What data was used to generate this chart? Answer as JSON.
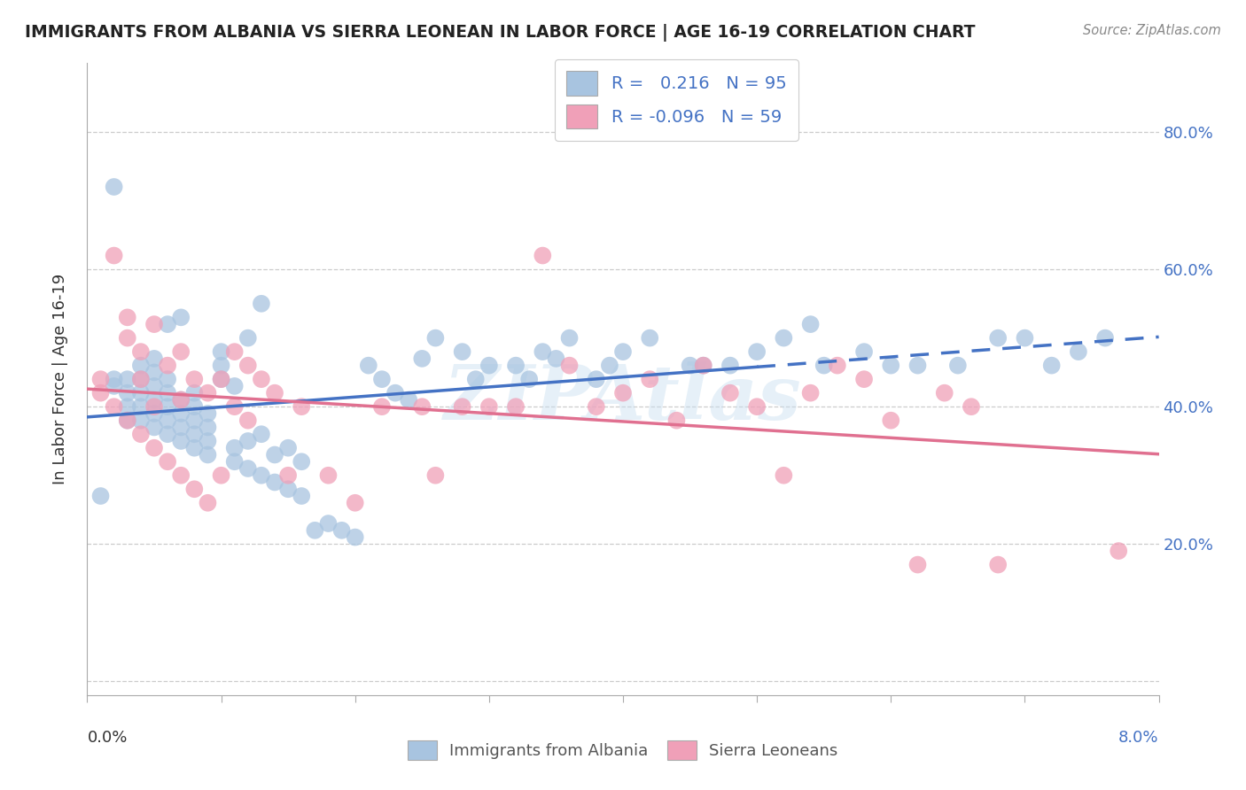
{
  "title": "IMMIGRANTS FROM ALBANIA VS SIERRA LEONEAN IN LABOR FORCE | AGE 16-19 CORRELATION CHART",
  "source": "Source: ZipAtlas.com",
  "ylabel_label": "In Labor Force | Age 16-19",
  "xlim": [
    0.0,
    8.0
  ],
  "ylim": [
    -2.0,
    90.0
  ],
  "yticks": [
    0.0,
    20.0,
    40.0,
    60.0,
    80.0
  ],
  "ytick_labels_right": [
    "",
    "20.0%",
    "40.0%",
    "60.0%",
    "80.0%"
  ],
  "legend_r_albania": "0.216",
  "legend_n_albania": "95",
  "legend_r_sierra": "-0.096",
  "legend_n_sierra": "59",
  "albania_color": "#a8c4e0",
  "sierra_color": "#f0a0b8",
  "albania_line_color": "#4472c4",
  "sierra_line_color": "#e07090",
  "albania_x": [
    0.1,
    0.2,
    0.2,
    0.3,
    0.3,
    0.3,
    0.3,
    0.4,
    0.4,
    0.4,
    0.4,
    0.4,
    0.5,
    0.5,
    0.5,
    0.5,
    0.5,
    0.5,
    0.6,
    0.6,
    0.6,
    0.6,
    0.6,
    0.6,
    0.7,
    0.7,
    0.7,
    0.7,
    0.7,
    0.8,
    0.8,
    0.8,
    0.8,
    0.8,
    0.9,
    0.9,
    0.9,
    0.9,
    1.0,
    1.0,
    1.0,
    1.1,
    1.1,
    1.1,
    1.2,
    1.2,
    1.2,
    1.3,
    1.3,
    1.3,
    1.4,
    1.4,
    1.5,
    1.5,
    1.6,
    1.6,
    1.7,
    1.8,
    1.9,
    2.0,
    2.1,
    2.2,
    2.3,
    2.4,
    2.5,
    2.6,
    2.8,
    2.9,
    3.0,
    3.2,
    3.3,
    3.4,
    3.5,
    3.6,
    3.8,
    3.9,
    4.0,
    4.2,
    4.5,
    4.6,
    4.8,
    5.0,
    5.2,
    5.4,
    5.5,
    5.8,
    6.0,
    6.2,
    6.5,
    6.8,
    7.0,
    7.2,
    7.4,
    7.6,
    0.2
  ],
  "albania_y": [
    27,
    44,
    43,
    40,
    38,
    42,
    44,
    38,
    40,
    42,
    44,
    46,
    37,
    39,
    41,
    43,
    45,
    47,
    36,
    38,
    40,
    42,
    44,
    52,
    35,
    37,
    39,
    41,
    53,
    34,
    36,
    38,
    40,
    42,
    33,
    35,
    37,
    39,
    44,
    46,
    48,
    32,
    34,
    43,
    31,
    35,
    50,
    30,
    36,
    55,
    29,
    33,
    28,
    34,
    27,
    32,
    22,
    23,
    22,
    21,
    46,
    44,
    42,
    41,
    47,
    50,
    48,
    44,
    46,
    46,
    44,
    48,
    47,
    50,
    44,
    46,
    48,
    50,
    46,
    46,
    46,
    48,
    50,
    52,
    46,
    48,
    46,
    46,
    46,
    50,
    50,
    46,
    48,
    50,
    72
  ],
  "sierra_x": [
    0.1,
    0.1,
    0.2,
    0.2,
    0.3,
    0.3,
    0.3,
    0.4,
    0.4,
    0.4,
    0.5,
    0.5,
    0.5,
    0.6,
    0.6,
    0.7,
    0.7,
    0.7,
    0.8,
    0.8,
    0.9,
    0.9,
    1.0,
    1.0,
    1.1,
    1.1,
    1.2,
    1.2,
    1.3,
    1.4,
    1.5,
    1.6,
    1.8,
    2.0,
    2.2,
    2.5,
    2.6,
    2.8,
    3.0,
    3.2,
    3.4,
    3.6,
    3.8,
    4.0,
    4.2,
    4.4,
    4.6,
    4.8,
    5.0,
    5.2,
    5.4,
    5.6,
    5.8,
    6.0,
    6.2,
    6.4,
    6.6,
    6.8,
    7.7
  ],
  "sierra_y": [
    42,
    44,
    40,
    62,
    38,
    50,
    53,
    36,
    44,
    48,
    34,
    40,
    52,
    32,
    46,
    30,
    41,
    48,
    28,
    44,
    26,
    42,
    30,
    44,
    40,
    48,
    38,
    46,
    44,
    42,
    30,
    40,
    30,
    26,
    40,
    40,
    30,
    40,
    40,
    40,
    62,
    46,
    40,
    42,
    44,
    38,
    46,
    42,
    40,
    30,
    42,
    46,
    44,
    38,
    17,
    42,
    40,
    17,
    19
  ],
  "dashed_start_x": 5.0,
  "xticks": [
    0.0,
    1.0,
    2.0,
    3.0,
    4.0,
    5.0,
    6.0,
    7.0,
    8.0
  ]
}
